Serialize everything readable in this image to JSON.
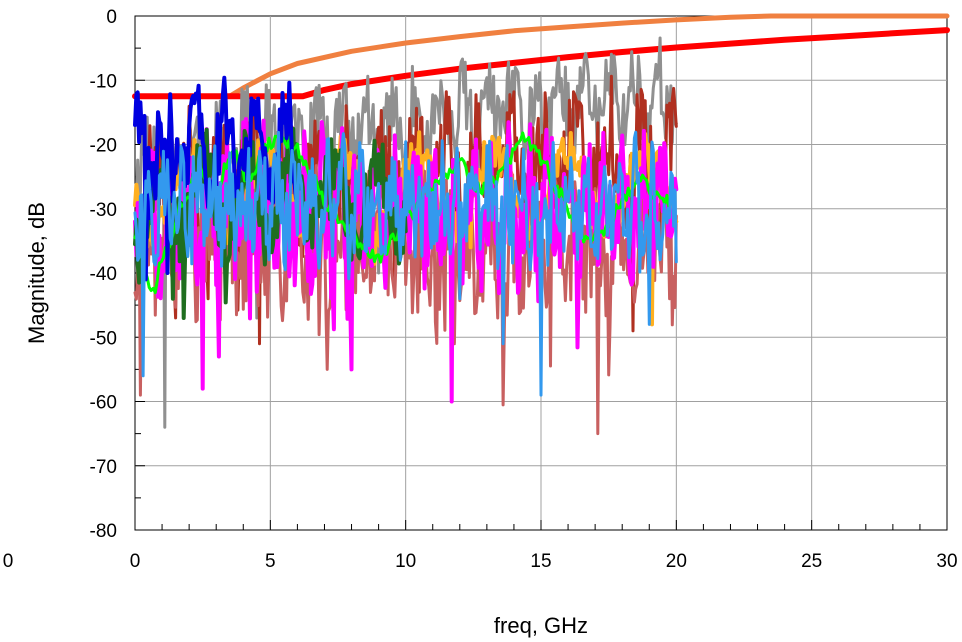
{
  "chart_data": {
    "type": "line",
    "title": "",
    "xlabel": "freq, GHz",
    "ylabel": "Magnitude, dB",
    "xlim": [
      0,
      30
    ],
    "ylim": [
      -80,
      0
    ],
    "xticks": [
      0,
      5,
      10,
      15,
      20,
      25,
      30
    ],
    "yticks": [
      0,
      -10,
      -20,
      -30,
      -40,
      -50,
      -60,
      -70,
      -80
    ],
    "x_minor_step": 1,
    "y_minor_step": 5,
    "grid": true,
    "legend": "none",
    "series": [
      {
        "color": "#F08040",
        "width": 5,
        "kind": "limit",
        "x": [
          0,
          3.5,
          4,
          5,
          6,
          8,
          10,
          12,
          14,
          16,
          18,
          20,
          22,
          23.5,
          30
        ],
        "y": [
          -12.5,
          -12.5,
          -11.2,
          -9.0,
          -7.4,
          -5.5,
          -4.2,
          -3.2,
          -2.3,
          -1.7,
          -1.1,
          -0.6,
          -0.2,
          0,
          0
        ]
      },
      {
        "color": "#FF0000",
        "width": 6,
        "kind": "limit",
        "x": [
          0,
          6.2,
          7,
          8,
          10,
          12,
          14,
          16,
          18,
          20,
          22,
          24,
          26,
          28,
          30
        ],
        "y": [
          -12.5,
          -12.5,
          -11.5,
          -10.6,
          -9.3,
          -8.2,
          -7.3,
          -6.4,
          -5.6,
          -4.9,
          -4.3,
          -3.7,
          -3.2,
          -2.7,
          -2.2
        ]
      },
      {
        "color": "#909090",
        "width": 3,
        "kind": "noise",
        "xmax": 20,
        "base": -22,
        "slope": 0.5,
        "amp": 4,
        "period": 0.9,
        "noise": 6,
        "seed": 11,
        "dips": [
          [
            1.1,
            -64
          ],
          [
            4.5,
            -47
          ],
          [
            9.0,
            -40
          ]
        ]
      },
      {
        "color": "#B03020",
        "width": 3,
        "kind": "noise",
        "xmax": 20,
        "base": -27,
        "slope": 0.3,
        "amp": 5,
        "period": 1.2,
        "noise": 8,
        "seed": 23,
        "dips": [
          [
            2.7,
            -44
          ],
          [
            4.6,
            -51
          ],
          [
            10.5,
            -43
          ],
          [
            18.4,
            -49
          ]
        ]
      },
      {
        "color": "#C86060",
        "width": 3,
        "kind": "noise",
        "xmax": 20,
        "base": -36,
        "slope": 0,
        "amp": 4,
        "period": 0.8,
        "noise": 9,
        "seed": 37,
        "dips": [
          [
            7.1,
            -55
          ],
          [
            11.8,
            -51
          ],
          [
            17.1,
            -65
          ],
          [
            0.2,
            -59
          ]
        ]
      },
      {
        "color": "#FFB020",
        "width": 4,
        "kind": "noise",
        "xmax": 20,
        "base": -27,
        "slope": 0,
        "amp": 6,
        "period": 2.8,
        "noise": 3,
        "seed": 41,
        "dips": [
          [
            19.1,
            -48
          ],
          [
            12.4,
            -36
          ]
        ]
      },
      {
        "color": "#FF00FF",
        "width": 4,
        "kind": "noise",
        "xmax": 20,
        "base": -30,
        "slope": 0,
        "amp": 6,
        "period": 0.7,
        "noise": 9,
        "seed": 53,
        "dips": [
          [
            2.5,
            -58
          ],
          [
            8.0,
            -55
          ],
          [
            11.7,
            -60
          ],
          [
            3.1,
            -53
          ]
        ]
      },
      {
        "color": "#1F6E1F",
        "width": 4,
        "kind": "noise",
        "xmax": 10,
        "base": -28,
        "slope": 0,
        "amp": 6,
        "period": 1.6,
        "noise": 5,
        "seed": 67,
        "dips": [
          [
            1.4,
            -44
          ],
          [
            1.8,
            -47
          ]
        ]
      },
      {
        "color": "#00FF00",
        "width": 3,
        "kind": "smooth",
        "xmax": 20,
        "seed": 71,
        "x": [
          0,
          0.6,
          1.2,
          1.8,
          2.4,
          3.0,
          3.6,
          4.2,
          4.8,
          5.4,
          6.0,
          6.6,
          7.2,
          7.8,
          8.4,
          9.0,
          9.6,
          10.2,
          10.8,
          11.4,
          12.0,
          12.6,
          13.2,
          13.8,
          14.4,
          15.0,
          15.6,
          16.2,
          16.8,
          17.4,
          18.0,
          18.6,
          19.2,
          19.8
        ],
        "y": [
          -34,
          -43,
          -36,
          -29,
          -24,
          -27,
          -21,
          -26,
          -20,
          -19,
          -21,
          -25,
          -30,
          -33,
          -36,
          -38,
          -34,
          -31,
          -27,
          -25,
          -23,
          -27,
          -26,
          -22,
          -19,
          -22,
          -27,
          -32,
          -35,
          -33,
          -29,
          -25,
          -28,
          -29
        ]
      },
      {
        "color": "#0000E0",
        "width": 4,
        "kind": "noise",
        "xmax": 6,
        "base": -20,
        "slope": 0,
        "amp": 6,
        "period": 1.1,
        "noise": 6,
        "seed": 83,
        "dips": [
          [
            0.4,
            -41
          ],
          [
            1.2,
            -40
          ]
        ]
      },
      {
        "color": "#3399EE",
        "width": 3,
        "kind": "noise",
        "xmax": 20,
        "base": -29,
        "slope": 0,
        "amp": 4,
        "period": 0.6,
        "noise": 7,
        "seed": 97,
        "dips": [
          [
            0.3,
            -56
          ],
          [
            15.0,
            -59
          ],
          [
            13.6,
            -51
          ],
          [
            19.0,
            -48
          ]
        ]
      }
    ]
  }
}
